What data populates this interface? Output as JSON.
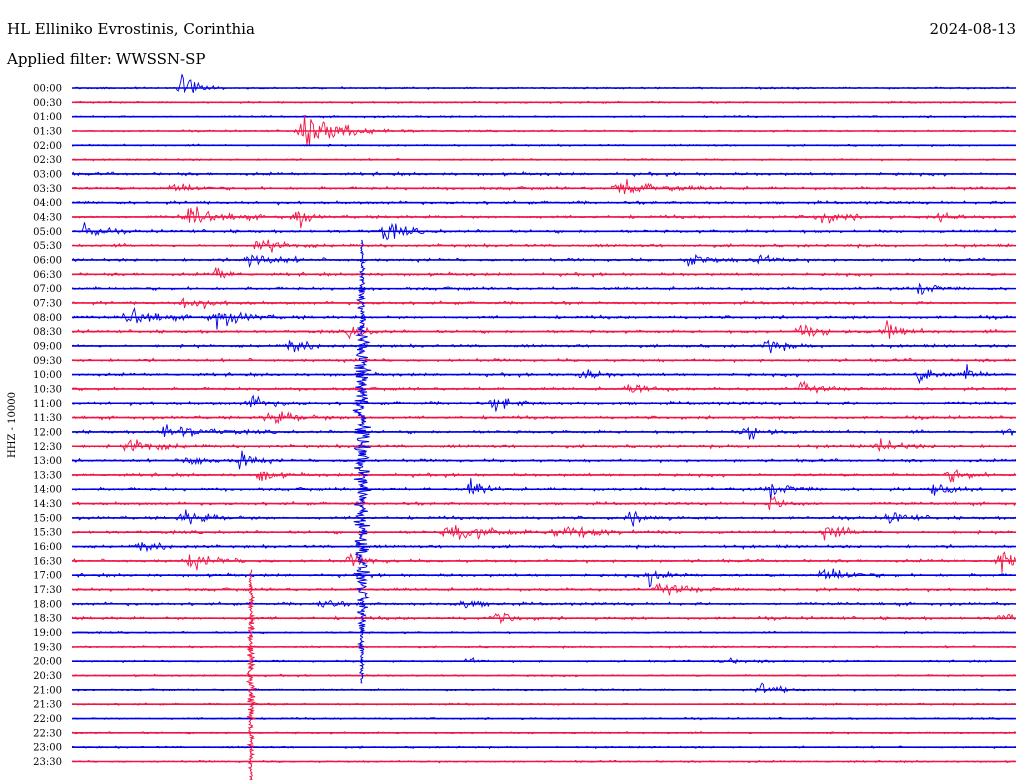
{
  "header": {
    "station": "HL Elliniko Evrostinis, Corinthia",
    "date": "2024-08-13",
    "filter_label": "Applied filter:",
    "filter_value": "WWSSN-SP"
  },
  "chart_data": {
    "type": "line",
    "ylabel": "HHZ - 10000",
    "trace_labels": [
      "00:00",
      "00:30",
      "01:00",
      "01:30",
      "02:00",
      "02:30",
      "03:00",
      "03:30",
      "04:00",
      "04:30",
      "05:00",
      "05:30",
      "06:00",
      "06:30",
      "07:00",
      "07:30",
      "08:00",
      "08:30",
      "09:00",
      "09:30",
      "10:00",
      "10:30",
      "11:00",
      "11:30",
      "12:00",
      "12:30",
      "13:00",
      "13:30",
      "14:00",
      "14:30",
      "15:00",
      "15:30",
      "16:00",
      "16:30",
      "17:00",
      "17:30",
      "18:00",
      "18:30",
      "19:00",
      "19:30",
      "20:00",
      "20:30",
      "21:00",
      "21:30",
      "22:00",
      "22:30",
      "23:00",
      "23:30"
    ],
    "colors": [
      "#0000e6",
      "#f01446"
    ],
    "color_pattern": "alternating by row",
    "grid": false
  }
}
